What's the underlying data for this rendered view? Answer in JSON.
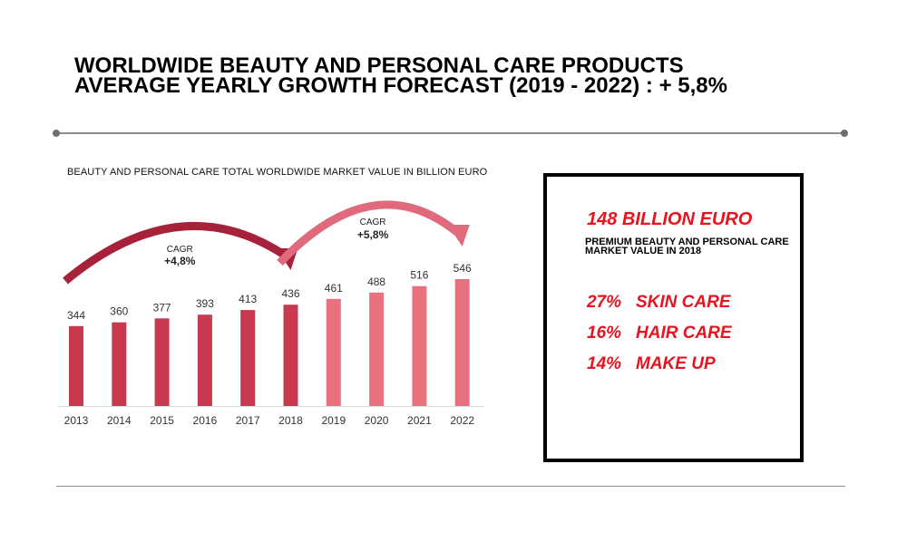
{
  "headline": {
    "line1": "WORLDWIDE BEAUTY AND PERSONAL CARE PRODUCTS",
    "line2": "AVERAGE YEARLY GROWTH FORECAST (2019 - 2022) :  + 5,8%"
  },
  "chart_data": {
    "type": "bar",
    "title": "BEAUTY AND PERSONAL CARE TOTAL WORLDWIDE MARKET VALUE IN BILLION EURO",
    "categories": [
      "2013",
      "2014",
      "2015",
      "2016",
      "2017",
      "2018",
      "2019",
      "2020",
      "2021",
      "2022"
    ],
    "values": [
      344,
      360,
      377,
      393,
      413,
      436,
      461,
      488,
      516,
      546
    ],
    "value_labels": [
      "344",
      "360",
      "377",
      "393",
      "413",
      "436",
      "461",
      "488",
      "516",
      "546"
    ],
    "period_colors": [
      "#c8384f",
      "#c8384f",
      "#c8384f",
      "#c8384f",
      "#c8384f",
      "#c8384f",
      "#e8707f",
      "#e8707f",
      "#e8707f",
      "#e8707f"
    ],
    "annotations": [
      {
        "label": "CAGR",
        "value": "+4,8%",
        "from": "2013",
        "to": "2018",
        "color": "#a8213b"
      },
      {
        "label": "CAGR",
        "value": "+5,8%",
        "from": "2018",
        "to": "2022",
        "color": "#e06a7c"
      }
    ],
    "grid": false,
    "ylim": [
      0,
      600
    ]
  },
  "info": {
    "big_stat": "148 BILLION EURO",
    "big_stat_desc": "PREMIUM BEAUTY AND PERSONAL CARE MARKET VALUE IN 2018",
    "shares": [
      {
        "pct": "27%",
        "label": "SKIN CARE"
      },
      {
        "pct": "16%",
        "label": "HAIR CARE"
      },
      {
        "pct": "14%",
        "label": "MAKE UP"
      }
    ],
    "accent_color": "#e8131f"
  }
}
